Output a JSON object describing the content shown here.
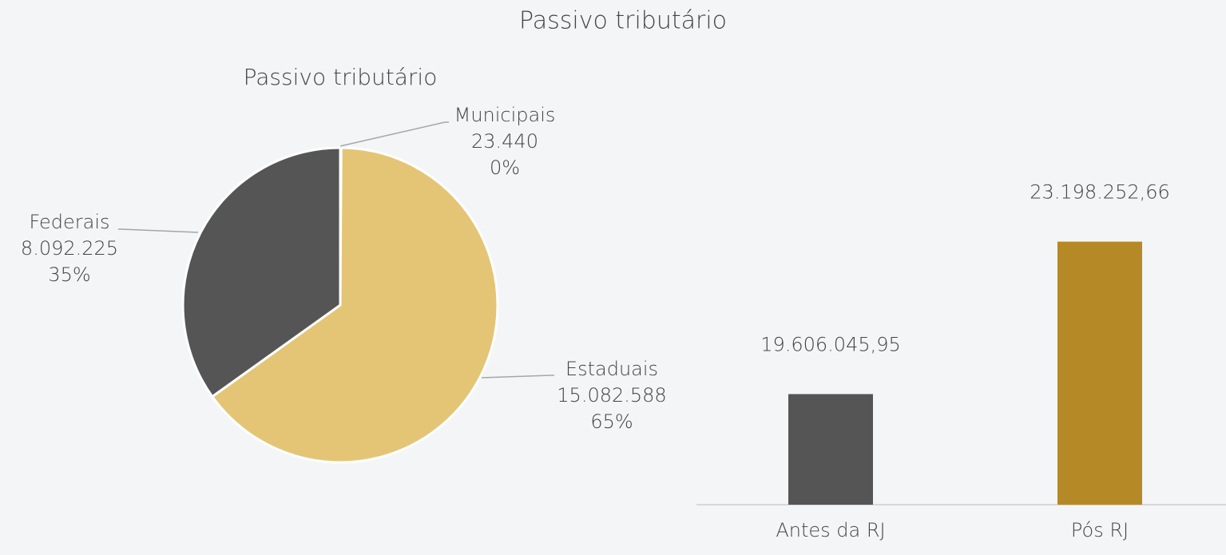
{
  "title": "Passivo tributário",
  "chart_data": [
    {
      "type": "pie",
      "title": "Passivo tributário",
      "categories": [
        "Municipais",
        "Estaduais",
        "Federais"
      ],
      "values": [
        23440,
        15082588,
        8092225
      ],
      "value_labels": [
        "23.440",
        "15.082.588",
        "8.092.225"
      ],
      "percentage_labels": [
        "0%",
        "65%",
        "35%"
      ],
      "colors": [
        "#a5a5a5",
        "#e4c576",
        "#555555"
      ]
    },
    {
      "type": "bar",
      "categories": [
        "Antes da RJ",
        "Pós RJ"
      ],
      "values": [
        19606045.95,
        23198252.66
      ],
      "value_labels": [
        "19.606.045,95",
        "23.198.252,66"
      ],
      "colors": [
        "#555555",
        "#b58a26"
      ],
      "ylim": [
        17000000,
        24000000
      ]
    }
  ]
}
